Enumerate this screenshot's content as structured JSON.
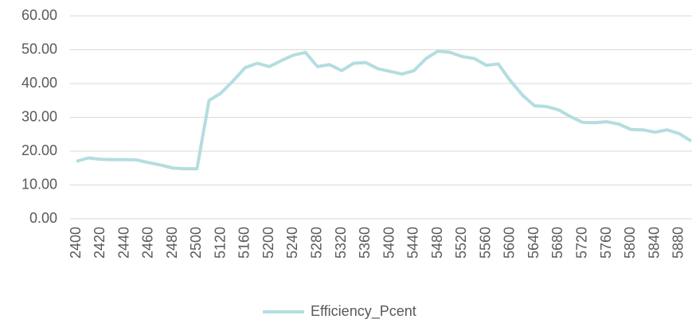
{
  "chart_data": {
    "type": "line",
    "categories": [
      "2400",
      null,
      "2420",
      null,
      "2440",
      null,
      "2460",
      null,
      "2480",
      null,
      "2500",
      null,
      "5120",
      null,
      "5160",
      null,
      "5200",
      null,
      "5240",
      null,
      "5280",
      null,
      "5320",
      null,
      "5360",
      null,
      "5400",
      null,
      "5440",
      null,
      "5480",
      null,
      "5520",
      null,
      "5560",
      null,
      "5600",
      null,
      "5640",
      null,
      "5680",
      null,
      "5720",
      null,
      "5760",
      null,
      "5800",
      null,
      "5840",
      null,
      "5880",
      null
    ],
    "series": [
      {
        "name": "Efficiency_Pcent",
        "color": "#b4dde0",
        "values": [
          17,
          18,
          17.6,
          17.5,
          17.5,
          17.4,
          16.6,
          15.9,
          15,
          14.8,
          14.8,
          35,
          37.2,
          40.8,
          44.7,
          46,
          45,
          46.8,
          48.4,
          49.2,
          45,
          45.6,
          43.8,
          46,
          46.2,
          44.4,
          43.6,
          42.8,
          43.8,
          47.4,
          49.6,
          49.2,
          48,
          47.4,
          45.4,
          45.8,
          40.8,
          36.6,
          33.4,
          33.2,
          32.2,
          30.2,
          28.5,
          28.4,
          28.7,
          28,
          26.4,
          26.3,
          25.6,
          26.3,
          25.2,
          23
        ]
      }
    ],
    "ylim": [
      0,
      60
    ],
    "yticks": [
      {
        "value": 0,
        "label": "0.00"
      },
      {
        "value": 10,
        "label": "10.00"
      },
      {
        "value": 20,
        "label": "20.00"
      },
      {
        "value": 30,
        "label": "30.00"
      },
      {
        "value": 40,
        "label": "40.00"
      },
      {
        "value": 50,
        "label": "50.00"
      },
      {
        "value": 60,
        "label": "60.00"
      }
    ],
    "grid": true,
    "legend": "bottom"
  }
}
